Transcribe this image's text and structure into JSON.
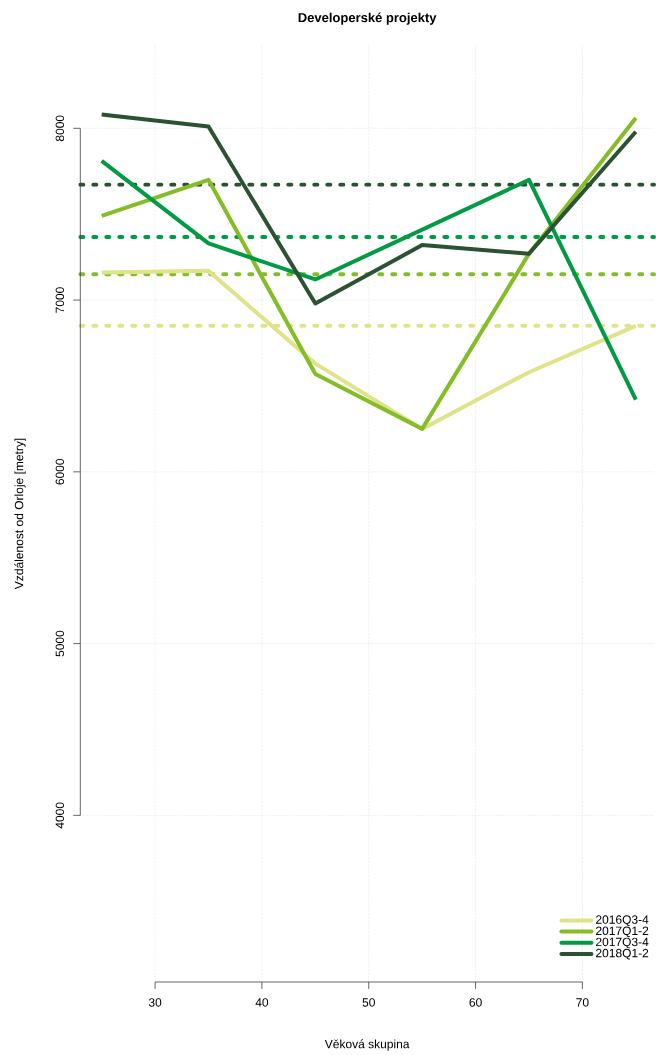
{
  "chart_data": {
    "type": "line",
    "title": "Developerské projekty",
    "xlabel": "Věková skupina",
    "ylabel": "Vzdálenost od Orloje [metry]",
    "x": [
      25,
      35,
      45,
      55,
      65,
      75
    ],
    "series": [
      {
        "name": "2016Q3-4",
        "color": "#dfe38a",
        "values": [
          7160,
          7170,
          6630,
          6250,
          6580,
          6850
        ]
      },
      {
        "name": "2017Q1-2",
        "color": "#84bd27",
        "values": [
          7490,
          7700,
          6570,
          6250,
          7270,
          8060
        ]
      },
      {
        "name": "2017Q3-4",
        "color": "#009a44",
        "values": [
          7810,
          7330,
          7120,
          7410,
          7700,
          6420
        ]
      },
      {
        "name": "2018Q1-2",
        "color": "#2c5234",
        "values": [
          8080,
          8010,
          6980,
          7320,
          7270,
          7980
        ]
      }
    ],
    "xlim": [
      23,
      76.7
    ],
    "ylim": [
      3030,
      8485
    ],
    "xticks": [
      30,
      40,
      50,
      60,
      70
    ],
    "yticks": [
      4000,
      5000,
      6000,
      7000,
      8000
    ],
    "grid": true,
    "legend": "bottom right",
    "line_style": "solid",
    "ref_lines": [
      {
        "axis": "y",
        "value": 6850,
        "color": "#dfe38a",
        "line_style": "dotted"
      },
      {
        "axis": "y",
        "value": 7150,
        "color": "#84bd27",
        "line_style": "dotted"
      },
      {
        "axis": "y",
        "value": 7367,
        "color": "#009a44",
        "line_style": "dotted"
      },
      {
        "axis": "y",
        "value": 7672,
        "color": "#2c5234",
        "line_style": "dotted"
      }
    ]
  }
}
